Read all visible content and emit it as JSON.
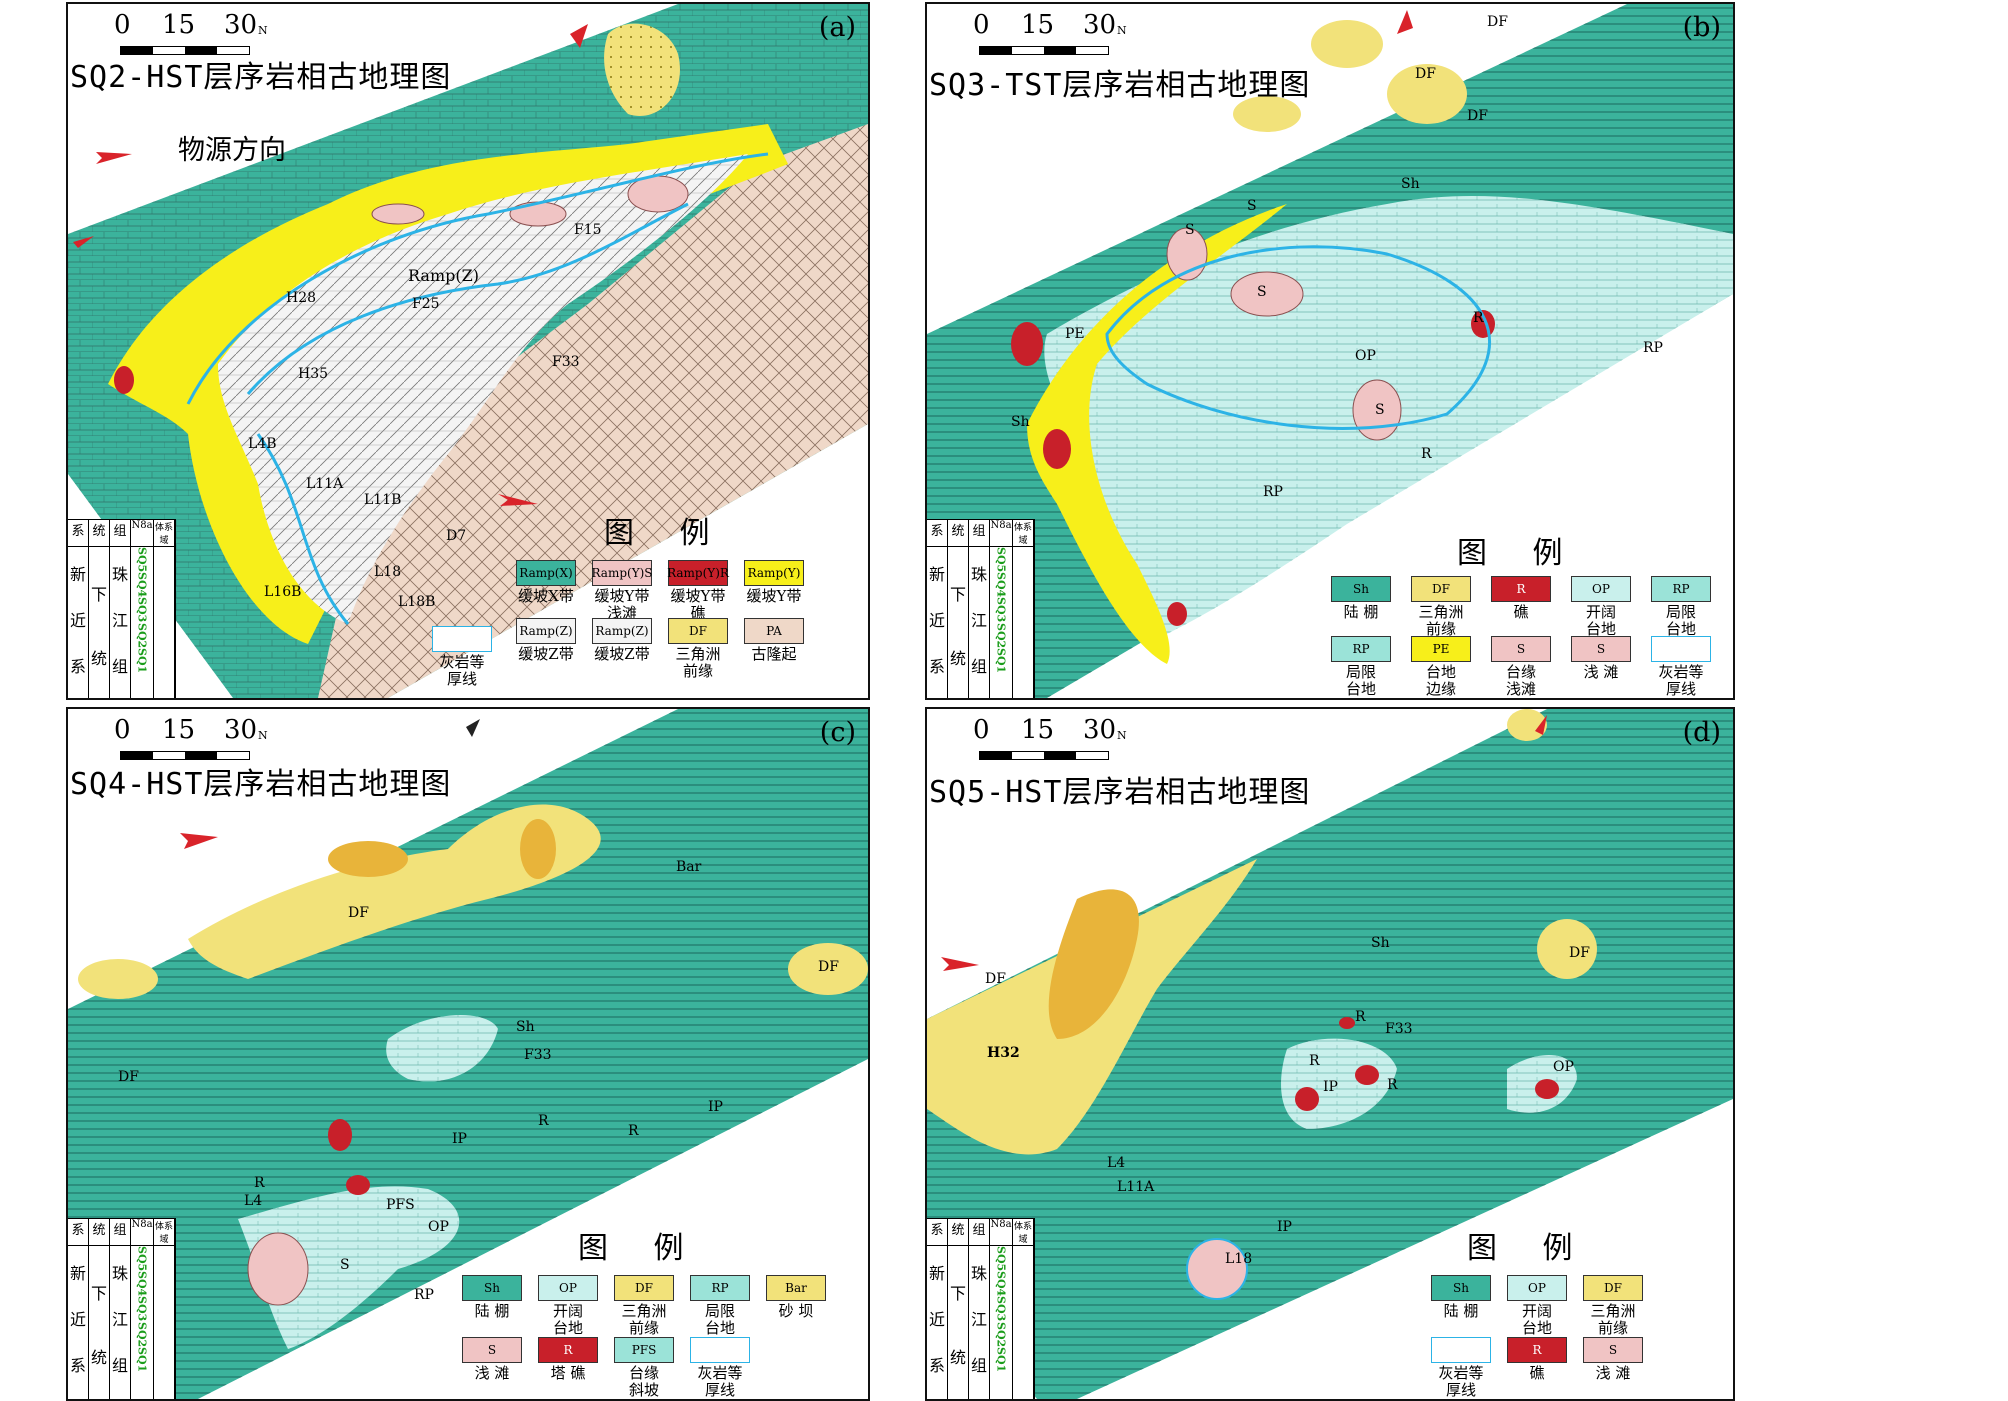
{
  "colors": {
    "shelf": "#3bb39c",
    "open_platform": "#c9f0ec",
    "restricted": "#9be3d8",
    "delta": "#f2e27a",
    "delta_dark": "#e8b43a",
    "reef": "#c8202a",
    "shoal": "#f0c4c4",
    "ramp_y": "#f7ef1a",
    "ramp_z": "#f4f4f4",
    "uplift": "#efd8c8",
    "isoline": "#2cb3e6",
    "arrow": "#d9232a"
  },
  "panels": [
    {
      "id": "a",
      "label": "(a)",
      "title": "SQ2-HST层序岩相古地理图",
      "scale": [
        "0",
        "15",
        "30"
      ],
      "north": "N",
      "source_text": "物源方向",
      "map_labels": [
        "Ramp(Z)",
        "H28",
        "F25",
        "F33",
        "H35",
        "L4B",
        "L11A",
        "L11B",
        "D7",
        "L18",
        "L18B",
        "L16B",
        "F15"
      ],
      "legend_title": "图  例",
      "legend": [
        {
          "name": "缓坡X带",
          "swatch": "Ramp(X)"
        },
        {
          "name": "缓坡Y带\n浅滩",
          "swatch": "Ramp(Y)S"
        },
        {
          "name": "缓坡Y带\n礁",
          "swatch": "Ramp(Y)R"
        },
        {
          "name": "缓坡Y带",
          "swatch": "Ramp(Y)"
        },
        {
          "name": "灰岩等\n厚线",
          "swatch": ""
        },
        {
          "name": "缓坡Z带",
          "swatch": "Ramp(Z)"
        },
        {
          "name": "缓坡Z带",
          "swatch": "Ramp(Z)"
        },
        {
          "name": "三角洲\n前缘",
          "swatch": "DF"
        },
        {
          "name": "古隆起",
          "swatch": "PA"
        }
      ]
    },
    {
      "id": "b",
      "label": "(b)",
      "title": "SQ3-TST层序岩相古地理图",
      "scale": [
        "0",
        "15",
        "30"
      ],
      "north": "N",
      "map_labels": [
        "DF",
        "DF",
        "DF",
        "Sh",
        "S",
        "S",
        "PE",
        "OP",
        "RP",
        "RP",
        "Sh",
        "R",
        "R",
        "S",
        "S"
      ],
      "legend_title": "图  例",
      "legend": [
        {
          "name": "陆 棚",
          "swatch": "Sh"
        },
        {
          "name": "三角洲\n前缘",
          "swatch": "DF"
        },
        {
          "name": "礁",
          "swatch": "R"
        },
        {
          "name": "开阔\n台地",
          "swatch": "OP"
        },
        {
          "name": "局限\n台地",
          "swatch": "RP"
        },
        {
          "name": "局限\n台地",
          "swatch": "RP"
        },
        {
          "name": "台地\n边缘",
          "swatch": "PE"
        },
        {
          "name": "台缘\n浅滩",
          "swatch": "S"
        },
        {
          "name": "浅 滩",
          "swatch": "S"
        },
        {
          "name": "灰岩等\n厚线",
          "swatch": ""
        }
      ]
    },
    {
      "id": "c",
      "label": "(c)",
      "title": "SQ4-HST层序岩相古地理图",
      "scale": [
        "0",
        "15",
        "30"
      ],
      "north": "N",
      "map_labels": [
        "DF",
        "DF",
        "DF",
        "Bar",
        "Sh",
        "F33",
        "R",
        "R",
        "IP",
        "IP",
        "R",
        "L4",
        "PFS",
        "OP",
        "RP",
        "S"
      ],
      "legend_title": "图  例",
      "legend": [
        {
          "name": "陆 棚",
          "swatch": "Sh"
        },
        {
          "name": "开阔\n台地",
          "swatch": "OP"
        },
        {
          "name": "三角洲\n前缘",
          "swatch": "DF"
        },
        {
          "name": "局限\n台地",
          "swatch": "RP"
        },
        {
          "name": "砂 坝",
          "swatch": "Bar"
        },
        {
          "name": "浅 滩",
          "swatch": "S"
        },
        {
          "name": "塔 礁",
          "swatch": "R"
        },
        {
          "name": "台缘\n斜坡",
          "swatch": "PFS"
        },
        {
          "name": "灰岩等\n厚线",
          "swatch": ""
        }
      ]
    },
    {
      "id": "d",
      "label": "(d)",
      "title": "SQ5-HST层序岩相古地理图",
      "scale": [
        "0",
        "15",
        "30"
      ],
      "north": "N",
      "map_labels": [
        "DF",
        "DF",
        "Sh",
        "H32",
        "R",
        "R",
        "F33",
        "IP",
        "R",
        "OP",
        "L4",
        "L11A",
        "IP",
        "L18"
      ],
      "legend_title": "图  例",
      "legend": [
        {
          "name": "陆 棚",
          "swatch": "Sh"
        },
        {
          "name": "开阔\n台地",
          "swatch": "OP"
        },
        {
          "name": "三角洲\n前缘",
          "swatch": "DF"
        },
        {
          "name": "灰岩等\n厚线",
          "swatch": ""
        },
        {
          "name": "礁",
          "swatch": "R"
        },
        {
          "name": "浅 滩",
          "swatch": "S"
        }
      ]
    }
  ],
  "strat_table": {
    "headers": [
      "系",
      "统",
      "组",
      "体系域"
    ],
    "system": [
      "新",
      "近",
      "系"
    ],
    "series": [
      "下",
      "统"
    ],
    "formation": [
      "珠",
      "江",
      "组"
    ],
    "code": "N8a",
    "sequences": [
      "SQ5",
      "SQ4",
      "SQ3",
      "SQ2",
      "SQ1"
    ]
  }
}
